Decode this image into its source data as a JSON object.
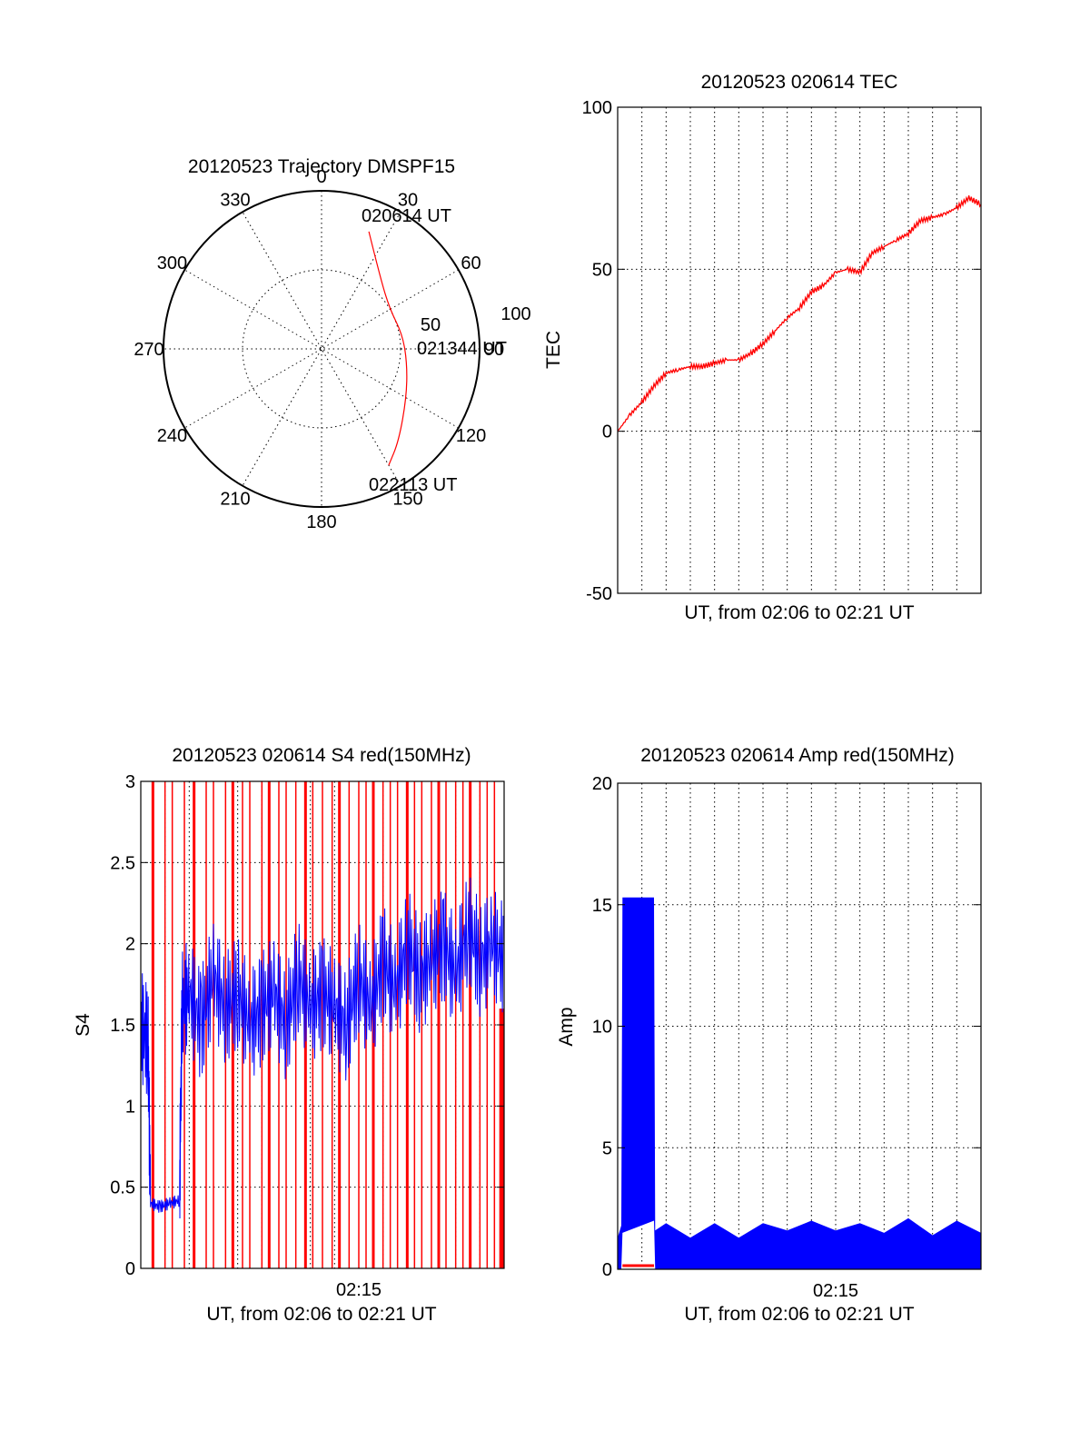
{
  "colors": {
    "red": "#ff0000",
    "blue": "#0000ff",
    "axis": "#000000",
    "background": "#ffffff"
  },
  "chart_data": [
    {
      "type": "polar",
      "title": "20120523 Trajectory DMSPF15",
      "azimuth_labels": [
        "0",
        "30",
        "60",
        "90",
        "120",
        "150",
        "180",
        "210",
        "240",
        "270",
        "300",
        "330"
      ],
      "radius_labels": [
        "50",
        "100"
      ],
      "elevation_rings": [
        50,
        0
      ],
      "trajectory": {
        "color": "red",
        "start_label": "020614 UT",
        "mid_label": "021344 UT",
        "end_label": "022113 UT",
        "points": [
          {
            "az": 22,
            "r": 80
          },
          {
            "az": 40,
            "r": 58
          },
          {
            "az": 60,
            "r": 50
          },
          {
            "az": 80,
            "r": 52
          },
          {
            "az": 100,
            "r": 55
          },
          {
            "az": 120,
            "r": 62
          },
          {
            "az": 140,
            "r": 76
          },
          {
            "az": 150,
            "r": 85
          }
        ]
      }
    },
    {
      "type": "line",
      "title": "20120523 020614 TEC",
      "xlabel": "UT, from 02:06 to 02:21 UT",
      "ylabel": "TEC",
      "ylim": [
        -50,
        100
      ],
      "yticks": [
        "-50",
        "0",
        "50",
        "100"
      ],
      "xlim": [
        0,
        15
      ],
      "grid": true,
      "series": [
        {
          "color": "red",
          "x": [
            0,
            0.5,
            1,
            1.5,
            2,
            2.5,
            3,
            3.5,
            4,
            4.5,
            5,
            5.5,
            6,
            6.5,
            7,
            7.5,
            8,
            8.5,
            9,
            9.5,
            10,
            10.5,
            11,
            11.5,
            12,
            12.5,
            13,
            13.5,
            14,
            14.5,
            15
          ],
          "y": [
            0,
            5,
            9,
            14,
            18,
            19,
            20,
            20,
            21,
            22,
            22,
            24,
            27,
            31,
            35,
            38,
            43,
            45,
            49,
            50,
            49,
            55,
            57,
            59,
            61,
            65,
            66,
            67,
            69,
            72,
            70
          ]
        }
      ]
    },
    {
      "type": "line",
      "title": "20120523 020614 S4 red(150MHz)",
      "xlabel": "UT, from 02:06 to 02:21 UT",
      "ylabel": "S4",
      "ylim": [
        0,
        3
      ],
      "yticks": [
        "0",
        "0.5",
        "1",
        "1.5",
        "2",
        "2.5",
        "3"
      ],
      "xlim": [
        0,
        15
      ],
      "xtick_labels": [
        {
          "x": 9,
          "label": "02:15"
        }
      ],
      "grid": true,
      "red_spikes_x": [
        0.5,
        1.0,
        1.3,
        1.8,
        2.2,
        2.7,
        3.0,
        3.5,
        3.8,
        4.2,
        4.5,
        5.0,
        5.3,
        5.7,
        6.0,
        6.4,
        6.8,
        7.1,
        7.5,
        7.9,
        8.2,
        8.6,
        9.0,
        9.3,
        9.6,
        10.0,
        10.3,
        10.6,
        11.0,
        11.3,
        11.6,
        12.0,
        12.3,
        12.6,
        13.0,
        13.3,
        13.6,
        14.0,
        14.3,
        14.6
      ],
      "series": [
        {
          "color": "blue",
          "x": [
            0,
            0.3,
            0.4,
            0.8,
            1.2,
            1.6,
            1.7,
            2.0,
            2.5,
            3.0,
            3.5,
            4.0,
            4.5,
            5.0,
            5.5,
            6.0,
            6.5,
            7.0,
            7.5,
            8.0,
            8.5,
            9.0,
            9.5,
            10.0,
            10.5,
            11.0,
            11.5,
            12.0,
            12.5,
            13.0,
            13.5,
            14.0,
            14.5,
            15
          ],
          "y": [
            1.5,
            1.4,
            0.4,
            0.38,
            0.4,
            0.42,
            1.6,
            1.7,
            1.5,
            1.8,
            1.6,
            1.7,
            1.5,
            1.6,
            1.7,
            1.5,
            1.8,
            1.6,
            1.7,
            1.6,
            1.5,
            1.8,
            1.6,
            1.9,
            1.7,
            2.0,
            1.8,
            1.9,
            2.0,
            1.8,
            2.1,
            1.9,
            2.0,
            1.9
          ]
        }
      ]
    },
    {
      "type": "line",
      "title": "20120523 020614 Amp red(150MHz)",
      "xlabel": "UT, from 02:06 to 02:21 UT",
      "ylabel": "Amp",
      "ylim": [
        0,
        20
      ],
      "yticks": [
        "0",
        "5",
        "10",
        "15",
        "20"
      ],
      "xlim": [
        0,
        15
      ],
      "xtick_labels": [
        {
          "x": 9,
          "label": "02:15"
        }
      ],
      "grid": true,
      "series": [
        {
          "color": "blue",
          "x": [
            0,
            0.15,
            0.2,
            1.5,
            1.55,
            2.0,
            3.0,
            4.0,
            5.0,
            6.0,
            7.0,
            8.0,
            9.0,
            10.0,
            11.0,
            12.0,
            13.0,
            14.0,
            15.0
          ],
          "y_low": [
            0,
            0,
            1.5,
            2.0,
            0,
            0,
            0,
            0,
            0,
            0,
            0,
            0,
            0,
            0,
            0,
            0,
            0,
            0,
            0
          ],
          "y_high": [
            1.5,
            1.5,
            15.5,
            15.0,
            1.8,
            1.6,
            1.5,
            1.6,
            1.5,
            1.6,
            1.8,
            1.7,
            1.8,
            1.6,
            1.7,
            1.8,
            1.6,
            1.7,
            1.7
          ]
        },
        {
          "color": "red",
          "x": [
            0.2,
            1.5
          ],
          "y": [
            0.15,
            0.15
          ]
        }
      ]
    }
  ]
}
